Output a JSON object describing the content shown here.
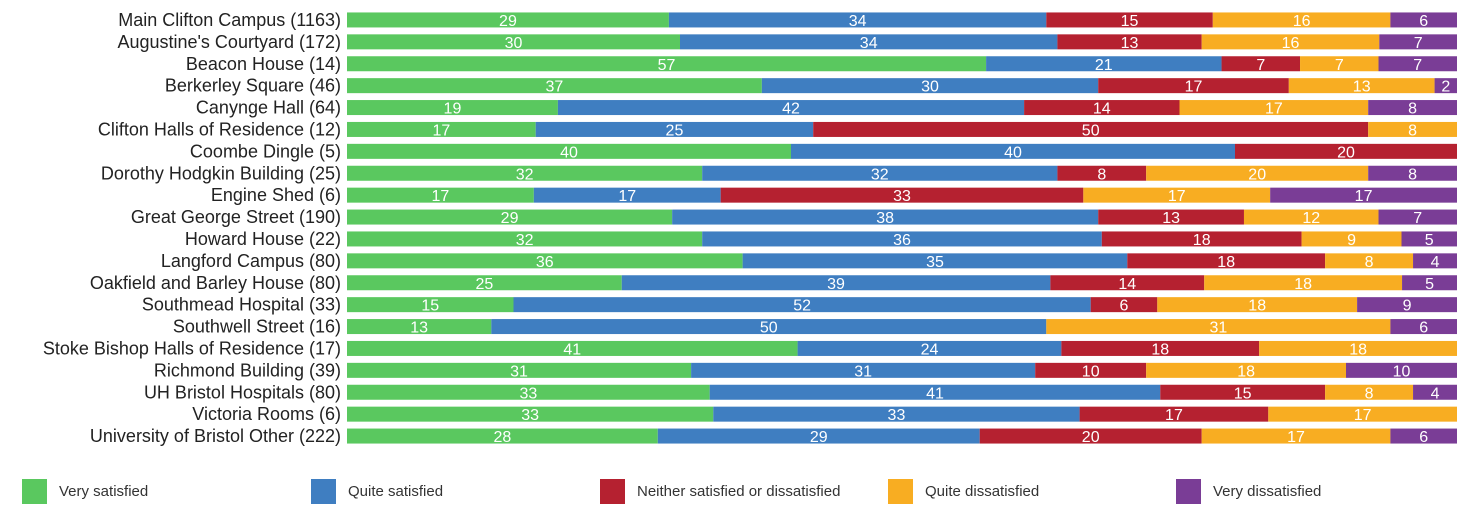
{
  "chart_data": {
    "type": "bar",
    "orientation": "horizontal",
    "stacked": true,
    "categories": [
      "Main Clifton Campus (1163)",
      "Augustine's Courtyard (172)",
      "Beacon House (14)",
      "Berkerley Square (46)",
      "Canynge Hall (64)",
      "Clifton Halls of Residence (12)",
      "Coombe Dingle (5)",
      "Dorothy Hodgkin Building  (25)",
      "Engine Shed (6)",
      "Great George Street (190)",
      "Howard House (22)",
      "Langford Campus (80)",
      "Oakfield and Barley House (80)",
      "Southmead Hospital (33)",
      "Southwell Street (16)",
      "Stoke Bishop Halls of Residence (17)",
      "Richmond Building (39)",
      "UH Bristol Hospitals (80)",
      "Victoria Rooms (6)",
      "University of Bristol Other (222)"
    ],
    "series": [
      {
        "name": "Very satisfied",
        "color": "#5ac85f",
        "values": [
          29,
          30,
          57,
          37,
          19,
          17,
          40,
          32,
          17,
          29,
          32,
          36,
          25,
          15,
          13,
          41,
          31,
          33,
          33,
          28
        ]
      },
      {
        "name": "Quite satisfied",
        "color": "#3f7ec1",
        "values": [
          34,
          34,
          21,
          30,
          42,
          25,
          40,
          32,
          17,
          38,
          36,
          35,
          39,
          52,
          50,
          24,
          31,
          41,
          33,
          29
        ]
      },
      {
        "name": "Neither satisfied or dissatisfied",
        "color": "#b52130",
        "values": [
          15,
          13,
          7,
          17,
          14,
          50,
          20,
          8,
          33,
          13,
          18,
          18,
          14,
          6,
          0,
          18,
          10,
          15,
          17,
          20
        ]
      },
      {
        "name": "Quite dissatisfied",
        "color": "#f8ad22",
        "values": [
          16,
          16,
          7,
          13,
          17,
          8,
          0,
          20,
          17,
          12,
          9,
          8,
          18,
          18,
          31,
          18,
          18,
          8,
          17,
          17
        ]
      },
      {
        "name": "Very dissatisfied",
        "color": "#7a3d96",
        "values": [
          6,
          7,
          7,
          2,
          8,
          0,
          0,
          8,
          17,
          7,
          5,
          4,
          5,
          9,
          6,
          0,
          10,
          4,
          0,
          6
        ]
      }
    ],
    "xlim": [
      0,
      100
    ],
    "grid": false,
    "legend_position": "bottom"
  }
}
